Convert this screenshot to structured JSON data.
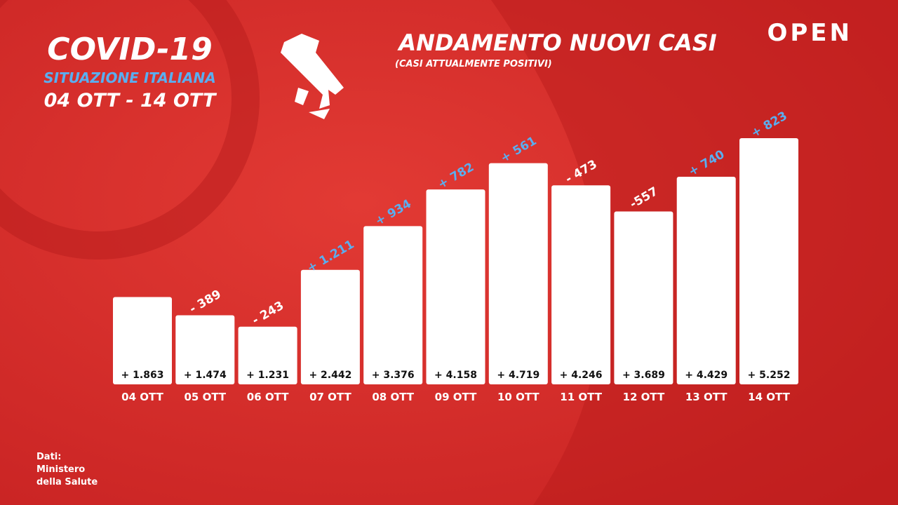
{
  "header": {
    "title": "COVID-19",
    "subtitle": "SITUAZIONE ITALIANA",
    "period": "04 OTT - 14 OTT",
    "logo": "OPEN"
  },
  "source": {
    "lines": [
      "Dati:",
      "Ministero",
      "della Salute"
    ]
  },
  "chart_data": {
    "type": "bar",
    "title": "ANDAMENTO NUOVI CASI",
    "subtitle": "(CASI ATTUALMENTE POSITIVI)",
    "categories": [
      "04 OTT",
      "05 OTT",
      "06 OTT",
      "07 OTT",
      "08 OTT",
      "09 OTT",
      "10 OTT",
      "11 OTT",
      "12 OTT",
      "13 OTT",
      "14 OTT"
    ],
    "values": [
      1863,
      1474,
      1231,
      2442,
      3376,
      4158,
      4719,
      4246,
      3689,
      4429,
      5252
    ],
    "value_labels": [
      "+ 1.863",
      "+ 1.474",
      "+ 1.231",
      "+ 2.442",
      "+ 3.376",
      "+ 4.158",
      "+ 4.719",
      "+ 4.246",
      "+ 3.689",
      "+ 4.429",
      "+ 5.252"
    ],
    "changes": [
      null,
      -389,
      -243,
      1211,
      934,
      782,
      561,
      -473,
      -557,
      740,
      823
    ],
    "change_labels": [
      null,
      "- 389",
      "- 243",
      "+ 1.211",
      "+ 934",
      "+ 782",
      "+ 561",
      "- 473",
      "-557",
      "+ 740",
      "+ 823"
    ],
    "color": "#ffffff",
    "increase_color": "#5aaef0",
    "decrease_color": "#ffffff"
  }
}
